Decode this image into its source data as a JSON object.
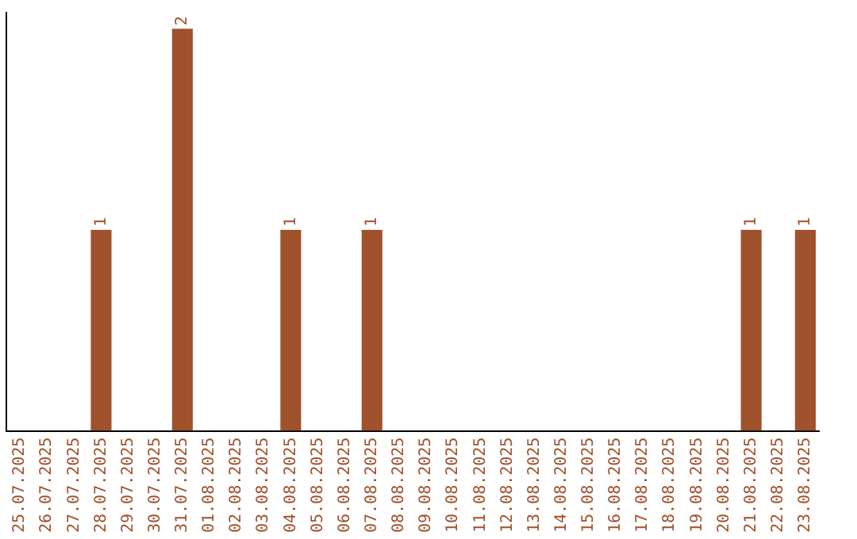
{
  "chart_data": {
    "type": "bar",
    "categories": [
      "25.07.2025",
      "26.07.2025",
      "27.07.2025",
      "28.07.2025",
      "29.07.2025",
      "30.07.2025",
      "31.07.2025",
      "01.08.2025",
      "02.08.2025",
      "03.08.2025",
      "04.08.2025",
      "05.08.2025",
      "06.08.2025",
      "07.08.2025",
      "08.08.2025",
      "09.08.2025",
      "10.08.2025",
      "11.08.2025",
      "12.08.2025",
      "13.08.2025",
      "14.08.2025",
      "15.08.2025",
      "16.08.2025",
      "17.08.2025",
      "18.08.2025",
      "19.08.2025",
      "20.08.2025",
      "21.08.2025",
      "22.08.2025",
      "23.08.2025"
    ],
    "values": [
      0,
      0,
      0,
      1,
      0,
      0,
      2,
      0,
      0,
      0,
      1,
      0,
      0,
      1,
      0,
      0,
      0,
      0,
      0,
      0,
      0,
      0,
      0,
      0,
      0,
      0,
      0,
      1,
      0,
      1
    ],
    "value_labels": [
      null,
      null,
      null,
      "1",
      null,
      null,
      "2",
      null,
      null,
      null,
      "1",
      null,
      null,
      "1",
      null,
      null,
      null,
      null,
      null,
      null,
      null,
      null,
      null,
      null,
      null,
      null,
      null,
      "1",
      null,
      "1"
    ],
    "color": "#a0522d",
    "grid": false,
    "legend": false,
    "tick_labels": "x"
  }
}
